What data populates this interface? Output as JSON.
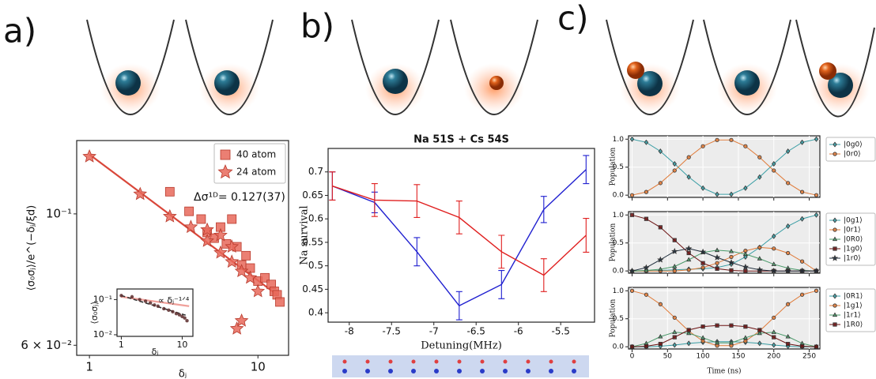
{
  "panel_labels": [
    "a)",
    "b)",
    "c)"
  ],
  "chart_data": [
    {
      "type": "scatter",
      "log_x": true,
      "log_y": true,
      "xlabel": "δⱼ",
      "ylabel": "⟨σ₀σⱼ⟩/e^(−δⱼ/ξd)",
      "annotation": "Δσ¹ᴰ= 0.127(37)",
      "xlim": [
        0.84,
        15.2
      ],
      "ylim": [
        0.0577,
        0.133
      ],
      "xticks": [
        1,
        10
      ],
      "yticks": [
        {
          "value": 0.06,
          "label": "6 × 10⁻²"
        },
        {
          "value": 0.1,
          "label": "10⁻¹"
        }
      ],
      "legend": "upper right",
      "series": [
        {
          "name": "40 atom",
          "marker": "square",
          "color": "#e8685a",
          "x": [
            3,
            3.9,
            4.6,
            5,
            5.5,
            6,
            6.5,
            7,
            7.5,
            8,
            8.5,
            9,
            10,
            11,
            12,
            12.5,
            13,
            13.5
          ],
          "values": [
            0.109,
            0.101,
            0.098,
            0.093,
            0.091,
            0.095,
            0.089,
            0.098,
            0.088,
            0.082,
            0.085,
            0.081,
            0.077,
            0.078,
            0.076,
            0.074,
            0.073,
            0.071
          ]
        },
        {
          "name": "24 atom",
          "marker": "star",
          "color": "#e8685a",
          "x": [
            1,
            2,
            3,
            4,
            5,
            5,
            6,
            6,
            7,
            7,
            7.5,
            8,
            8,
            9,
            10
          ],
          "values": [
            0.125,
            0.108,
            0.099,
            0.095,
            0.094,
            0.09,
            0.092,
            0.086,
            0.088,
            0.083,
            0.064,
            0.08,
            0.066,
            0.078,
            0.074
          ]
        }
      ],
      "fits": [
        {
          "x": [
            1,
            13
          ],
          "values": [
            0.126,
            0.073
          ],
          "color": "#d9473a"
        }
      ]
    },
    {
      "type": "scatter",
      "log_x": true,
      "log_y": true,
      "xlabel": "δⱼ",
      "ylabel": "⟨σ₀σⱼ⟩",
      "annotation": "∝ δⱼ⁻¹ᐟ⁴",
      "xlim": [
        0.85,
        15
      ],
      "ylim": [
        0.009,
        0.2
      ],
      "xticks": [
        1,
        10
      ],
      "yticks": [
        {
          "value": 0.01,
          "label": "10⁻²"
        },
        {
          "value": 0.1,
          "label": "10⁻¹"
        }
      ],
      "series": [
        {
          "marker": "circle",
          "color": "#5a2a2a",
          "x": [
            1,
            1.5,
            2,
            2.5,
            3,
            3.5,
            4,
            5,
            6,
            7,
            8,
            9,
            10,
            11,
            12
          ],
          "values": [
            0.13,
            0.12,
            0.1,
            0.09,
            0.08,
            0.07,
            0.065,
            0.055,
            0.05,
            0.045,
            0.04,
            0.037,
            0.033,
            0.03,
            0.025
          ]
        }
      ],
      "fits": [
        {
          "x": [
            1,
            13
          ],
          "values": [
            0.12,
            0.065
          ],
          "color": "#f0a09a"
        },
        {
          "x": [
            1,
            12
          ],
          "values": [
            0.13,
            0.035
          ],
          "color": "#333333",
          "dash": true
        }
      ]
    },
    {
      "type": "line",
      "title": "Na 51S + Cs 54S",
      "xlabel": "Detuning(MHz)",
      "ylabel": "Na survival",
      "xlim": [
        -8.25,
        -5.1
      ],
      "ylim": [
        0.38,
        0.75
      ],
      "xticks": [
        -8,
        -7.5,
        -7,
        -6.5,
        -6,
        -5.5
      ],
      "yticks": [
        0.4,
        0.45,
        0.5,
        0.55,
        0.6,
        0.65,
        0.7
      ],
      "x": [
        -8.2,
        -7.7,
        -7.2,
        -6.7,
        -6.2,
        -5.7,
        -5.2
      ],
      "series": [
        {
          "color": "#2020d0",
          "values": [
            0.67,
            0.635,
            0.53,
            0.415,
            0.46,
            0.62,
            0.705
          ],
          "errors": [
            0.03,
            0.022,
            0.03,
            0.03,
            0.03,
            0.028,
            0.03
          ]
        },
        {
          "color": "#e02020",
          "values": [
            0.67,
            0.64,
            0.638,
            0.603,
            0.53,
            0.48,
            0.565
          ],
          "errors": [
            0.03,
            0.035,
            0.035,
            0.035,
            0.035,
            0.035,
            0.036
          ]
        }
      ]
    },
    {
      "type": "line",
      "ylabel": "Population",
      "grid": true,
      "background": "#ececec",
      "legend": "outside right",
      "xlim": [
        -5,
        265
      ],
      "ylim": [
        -0.04,
        1.06
      ],
      "xticks": [
        0,
        50,
        100,
        150,
        200,
        250
      ],
      "show_xtick_labels": false,
      "yticks": [
        {
          "value": 0,
          "label": "0.0"
        },
        {
          "value": 0.5,
          "label": "0.5"
        },
        {
          "value": 1,
          "label": "1.0"
        }
      ],
      "x": [
        0,
        20,
        40,
        60,
        80,
        100,
        120,
        140,
        160,
        180,
        200,
        220,
        240,
        260
      ],
      "series": [
        {
          "name": "|0g0⟩",
          "marker": "diamond",
          "color": "#3a9ea5",
          "values": [
            1,
            0.943,
            0.784,
            0.56,
            0.323,
            0.126,
            0.015,
            0.015,
            0.126,
            0.323,
            0.56,
            0.784,
            0.943,
            1
          ]
        },
        {
          "name": "|0r0⟩",
          "marker": "circle",
          "color": "#e07b39",
          "values": [
            0,
            0.057,
            0.216,
            0.44,
            0.677,
            0.874,
            0.985,
            0.985,
            0.874,
            0.677,
            0.44,
            0.216,
            0.057,
            0
          ]
        }
      ]
    },
    {
      "type": "line",
      "ylabel": "Population",
      "grid": true,
      "background": "#ececec",
      "legend": "outside right",
      "xlim": [
        -5,
        265
      ],
      "ylim": [
        -0.04,
        1.06
      ],
      "xticks": [
        0,
        50,
        100,
        150,
        200,
        250
      ],
      "show_xtick_labels": false,
      "yticks": [
        {
          "value": 0,
          "label": "0.0"
        },
        {
          "value": 0.5,
          "label": "0.5"
        },
        {
          "value": 1,
          "label": "1.0"
        }
      ],
      "x": [
        0,
        20,
        40,
        60,
        80,
        100,
        120,
        140,
        160,
        180,
        200,
        220,
        240,
        260
      ],
      "series": [
        {
          "name": "|0g1⟩",
          "marker": "diamond",
          "color": "#3a9ea5",
          "values": [
            0,
            0,
            0.01,
            0.02,
            0.03,
            0.04,
            0.06,
            0.12,
            0.25,
            0.42,
            0.62,
            0.8,
            0.93,
            1
          ]
        },
        {
          "name": "|0r1⟩",
          "marker": "circle",
          "color": "#e07b39",
          "values": [
            0,
            0,
            0,
            0,
            0.02,
            0.06,
            0.14,
            0.25,
            0.36,
            0.42,
            0.4,
            0.32,
            0.17,
            0
          ]
        },
        {
          "name": "|0R0⟩",
          "marker": "triangle",
          "color": "#4a9a6a",
          "values": [
            0,
            0.01,
            0.03,
            0.08,
            0.2,
            0.33,
            0.37,
            0.35,
            0.3,
            0.22,
            0.12,
            0.05,
            0.01,
            0
          ]
        },
        {
          "name": "|1g0⟩",
          "marker": "square",
          "color": "#6b1010",
          "values": [
            1,
            0.93,
            0.78,
            0.55,
            0.32,
            0.14,
            0.04,
            0.01,
            0,
            0,
            0,
            0,
            0,
            0
          ]
        },
        {
          "name": "|1r0⟩",
          "marker": "star",
          "color": "#1d2b3a",
          "values": [
            0,
            0.06,
            0.2,
            0.35,
            0.4,
            0.34,
            0.24,
            0.15,
            0.07,
            0.02,
            0,
            0,
            0,
            0
          ]
        }
      ]
    },
    {
      "type": "line",
      "ylabel": "Population",
      "xlabel": "Time (ns)",
      "grid": true,
      "background": "#ececec",
      "legend": "outside right",
      "xlim": [
        -5,
        265
      ],
      "ylim": [
        -0.04,
        1.06
      ],
      "xticks": [
        0,
        50,
        100,
        150,
        200,
        250
      ],
      "show_xtick_labels": true,
      "yticks": [
        {
          "value": 0,
          "label": "0.0"
        },
        {
          "value": 0.5,
          "label": "0.5"
        },
        {
          "value": 1,
          "label": "1.0"
        }
      ],
      "x": [
        0,
        20,
        40,
        60,
        80,
        100,
        120,
        140,
        160,
        180,
        200,
        220,
        240,
        260
      ],
      "series": [
        {
          "name": "|0R1⟩",
          "marker": "diamond",
          "color": "#3a9ea5",
          "values": [
            0,
            0,
            0.01,
            0.03,
            0.06,
            0.08,
            0.09,
            0.09,
            0.08,
            0.06,
            0.03,
            0.01,
            0,
            0
          ]
        },
        {
          "name": "|1g1⟩",
          "marker": "circle",
          "color": "#e07b39",
          "values": [
            1,
            0.93,
            0.76,
            0.52,
            0.28,
            0.1,
            0.02,
            0.02,
            0.1,
            0.28,
            0.52,
            0.76,
            0.93,
            1
          ]
        },
        {
          "name": "|1r1⟩",
          "marker": "triangle",
          "color": "#4a9a6a",
          "values": [
            0,
            0.06,
            0.18,
            0.26,
            0.24,
            0.16,
            0.07,
            0.07,
            0.16,
            0.24,
            0.26,
            0.18,
            0.06,
            0
          ]
        },
        {
          "name": "|1R0⟩",
          "marker": "square",
          "color": "#6b1010",
          "values": [
            0,
            0.01,
            0.05,
            0.17,
            0.3,
            0.36,
            0.38,
            0.38,
            0.36,
            0.3,
            0.17,
            0.05,
            0.01,
            0
          ]
        }
      ]
    }
  ]
}
